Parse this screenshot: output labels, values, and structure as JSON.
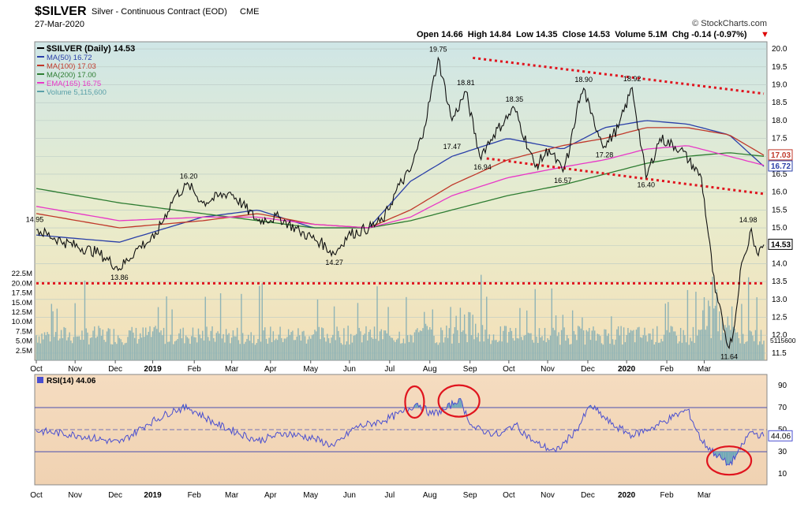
{
  "header": {
    "symbol": "$SILVER",
    "name": "Silver - Continuous Contract (EOD)",
    "exchange": "CME",
    "date": "27-Mar-2020",
    "brand": "© StockCharts.com",
    "quote": "Open 14.66  High 14.84  Low 14.35  Close 14.53  Volume 5.1M  Chg -0.14 (-0.97%)",
    "quote_arrow": "▼"
  },
  "legend": [
    {
      "label": "$SILVER (Daily) 14.53",
      "color": "#000000"
    },
    {
      "label": "MA(50) 16.72",
      "color": "#2a3fa8"
    },
    {
      "label": "MA(100) 17.03",
      "color": "#c0392b"
    },
    {
      "label": "MA(200) 17.00",
      "color": "#2e7d32"
    },
    {
      "label": "EMA(165) 16.75",
      "color": "#e838c7"
    },
    {
      "label": "Volume 5,115,600",
      "color": "#5aa0a8"
    }
  ],
  "rsi_legend": {
    "label": "RSI(14) 44.06"
  },
  "chart_data": [
    {
      "type": "line",
      "title": "$SILVER (Daily) 14.53",
      "x_ticks": [
        "Oct",
        "Nov",
        "Dec",
        "2019",
        "Feb",
        "Mar",
        "Apr",
        "May",
        "Jun",
        "Jul",
        "Aug",
        "Sep",
        "Oct",
        "Nov",
        "Dec",
        "2020",
        "Feb",
        "Mar"
      ],
      "ylim": [
        11.3,
        20.2
      ],
      "y_ticks": [
        "20.0",
        "19.5",
        "19.0",
        "18.5",
        "18.0",
        "17.5",
        "17.0",
        "16.5",
        "16.0",
        "15.5",
        "15.0",
        "14.5",
        "14.0",
        "13.5",
        "13.0",
        "12.5",
        "12.0",
        "11.5"
      ],
      "annotations": [
        "14.95",
        "13.86",
        "16.20",
        "14.27",
        "19.75",
        "18.81",
        "17.47",
        "16.94",
        "18.35",
        "16.57",
        "18.90",
        "17.28",
        "18.92",
        "16.40",
        "14.98",
        "11.64"
      ],
      "price_tags": [
        {
          "label": "17.03",
          "color": "#c0392b"
        },
        {
          "label": "16.72",
          "color": "#2a3fa8"
        },
        {
          "label": "14.53",
          "color": "#000000"
        }
      ],
      "price_anchors": {
        "x": [
          0,
          20,
          45,
          60,
          75,
          85,
          100,
          110,
          120,
          140,
          160,
          175,
          190,
          205,
          215,
          225,
          240,
          250,
          262,
          270,
          280,
          290,
          300,
          310,
          320,
          330,
          345,
          360,
          370,
          380,
          385,
          390,
          395,
          400,
          410,
          420,
          430,
          440,
          450,
          465,
          480,
          490,
          500,
          504,
          508,
          512,
          516,
          520,
          525
        ],
        "y": [
          14.95,
          14.6,
          14.3,
          13.86,
          14.5,
          14.7,
          15.9,
          16.2,
          15.7,
          16.0,
          15.2,
          15.3,
          14.9,
          14.6,
          14.27,
          14.8,
          15.0,
          15.2,
          16.2,
          16.6,
          17.8,
          19.75,
          18.0,
          18.81,
          17.0,
          17.6,
          18.35,
          16.7,
          17.2,
          16.57,
          17.2,
          18.3,
          18.9,
          18.2,
          17.28,
          17.8,
          18.92,
          16.4,
          17.5,
          17.2,
          16.4,
          13.2,
          11.64,
          12.3,
          13.8,
          14.3,
          14.98,
          14.3,
          14.53
        ]
      },
      "series": [
        {
          "name": "MA(50) 16.72",
          "color": "#2a3fa8",
          "x": [
            0,
            60,
            120,
            160,
            200,
            240,
            270,
            300,
            340,
            380,
            410,
            440,
            470,
            500,
            525
          ],
          "y": [
            14.8,
            14.6,
            15.3,
            15.5,
            15.0,
            15.0,
            16.3,
            17.0,
            17.5,
            17.2,
            17.8,
            18.0,
            17.9,
            17.6,
            16.72
          ]
        },
        {
          "name": "MA(100) 17.03",
          "color": "#c0392b",
          "x": [
            0,
            60,
            120,
            160,
            200,
            240,
            270,
            300,
            340,
            380,
            410,
            440,
            470,
            500,
            525
          ],
          "y": [
            15.4,
            15.0,
            15.2,
            15.4,
            15.1,
            15.0,
            15.5,
            16.2,
            16.9,
            17.3,
            17.5,
            17.8,
            17.8,
            17.6,
            17.03
          ]
        },
        {
          "name": "MA(200) 17.00",
          "color": "#2e7d32",
          "x": [
            0,
            60,
            120,
            160,
            200,
            240,
            270,
            300,
            340,
            380,
            410,
            440,
            470,
            500,
            525
          ],
          "y": [
            16.1,
            15.7,
            15.4,
            15.2,
            15.0,
            15.0,
            15.2,
            15.5,
            15.9,
            16.2,
            16.5,
            16.8,
            17.0,
            17.1,
            17.0
          ]
        },
        {
          "name": "EMA(165) 16.75",
          "color": "#e838c7",
          "x": [
            0,
            60,
            120,
            160,
            200,
            240,
            270,
            300,
            340,
            380,
            410,
            440,
            470,
            500,
            525
          ],
          "y": [
            15.6,
            15.2,
            15.3,
            15.3,
            15.1,
            15.0,
            15.3,
            15.9,
            16.4,
            16.7,
            16.9,
            17.2,
            17.3,
            17.0,
            16.75
          ]
        }
      ],
      "trend_lines": [
        {
          "x": [
            315,
            525
          ],
          "y": [
            19.75,
            18.75
          ]
        },
        {
          "x": [
            325,
            525
          ],
          "y": [
            16.94,
            15.95
          ]
        },
        {
          "x": [
            0,
            525
          ],
          "y": [
            13.45,
            13.45
          ]
        }
      ],
      "volume": {
        "ylim": [
          0,
          25
        ],
        "y_ticks": [
          "22.5M",
          "20.0M",
          "17.5M",
          "15.0M",
          "12.5M",
          "10.0M",
          "7.5M",
          "5.0M",
          "2.5M"
        ],
        "last_label": "5115600"
      }
    },
    {
      "type": "line",
      "title": "RSI(14) 44.06",
      "ylim": [
        0,
        100
      ],
      "y_ticks": [
        "90",
        "70",
        "50",
        "30",
        "10"
      ],
      "x_ticks": [
        "Oct",
        "Nov",
        "Dec",
        "2019",
        "Feb",
        "Mar",
        "Apr",
        "May",
        "Jun",
        "Jul",
        "Aug",
        "Sep",
        "Oct",
        "Nov",
        "Dec",
        "2020",
        "Feb",
        "Mar"
      ],
      "reference_lines": [
        70,
        50,
        30
      ],
      "last_value_label": "44.06",
      "rsi_anchors": {
        "x": [
          0,
          30,
          60,
          80,
          100,
          110,
          130,
          160,
          180,
          200,
          215,
          230,
          250,
          265,
          275,
          285,
          295,
          305,
          315,
          325,
          335,
          345,
          360,
          375,
          390,
          400,
          415,
          430,
          445,
          460,
          470,
          480,
          490,
          500,
          508,
          515,
          525
        ],
        "y": [
          49,
          45,
          38,
          55,
          68,
          70,
          55,
          40,
          47,
          42,
          35,
          52,
          58,
          66,
          74,
          64,
          68,
          78,
          52,
          48,
          45,
          55,
          38,
          30,
          50,
          72,
          55,
          45,
          52,
          62,
          68,
          40,
          28,
          18,
          32,
          48,
          44
        ]
      },
      "circles": [
        {
          "x": 273,
          "y": 75
        },
        {
          "x": 305,
          "y": 76
        },
        {
          "x": 500,
          "y": 22
        }
      ]
    }
  ]
}
